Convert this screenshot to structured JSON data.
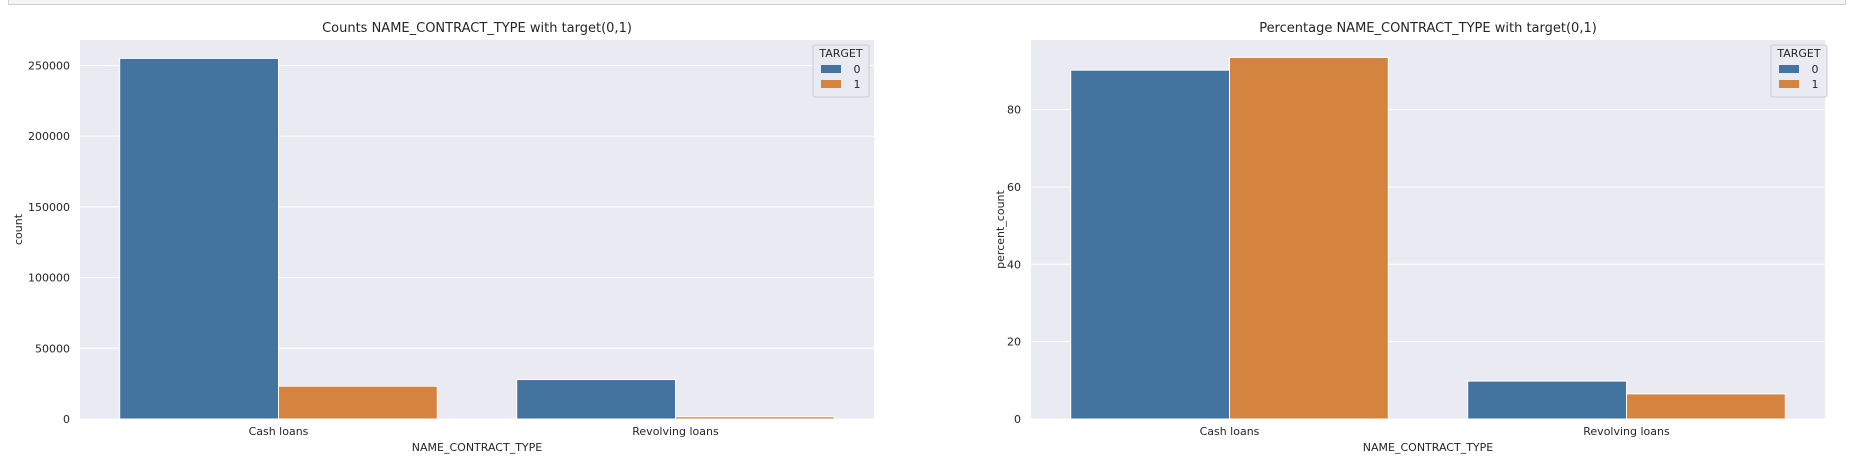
{
  "chart_data": [
    {
      "type": "bar",
      "title": "Counts NAME_CONTRACT_TYPE with target(0,1)",
      "xlabel": "NAME_CONTRACT_TYPE",
      "ylabel": "count",
      "categories": [
        "Cash loans",
        "Revolving loans"
      ],
      "series": [
        {
          "name": "0",
          "values": [
            255000,
            27900
          ]
        },
        {
          "name": "1",
          "values": [
            23200,
            1600
          ]
        }
      ],
      "ylim": [
        0,
        268000
      ],
      "yticks": [
        0,
        50000,
        100000,
        150000,
        200000,
        250000
      ],
      "ytick_labels": [
        "0",
        "50000",
        "100000",
        "150000",
        "200000",
        "250000"
      ],
      "legend": {
        "title": "TARGET",
        "position": "top-right"
      },
      "grid": true
    },
    {
      "type": "bar",
      "title": "Percentage NAME_CONTRACT_TYPE with target(0,1)",
      "xlabel": "NAME_CONTRACT_TYPE",
      "ylabel": "percent_count",
      "categories": [
        "Cash loans",
        "Revolving loans"
      ],
      "series": [
        {
          "name": "0",
          "values": [
            90.2,
            9.8
          ]
        },
        {
          "name": "1",
          "values": [
            93.5,
            6.5
          ]
        }
      ],
      "ylim": [
        0,
        98
      ],
      "yticks": [
        0,
        20,
        40,
        60,
        80
      ],
      "ytick_labels": [
        "0",
        "20",
        "40",
        "60",
        "80"
      ],
      "legend": {
        "title": "TARGET",
        "position": "top-right"
      },
      "grid": true
    }
  ],
  "colors": {
    "series_0": "#4374a0",
    "series_1": "#d4843f",
    "axes_bg": "#eaeaf2",
    "grid": "#ffffff"
  }
}
